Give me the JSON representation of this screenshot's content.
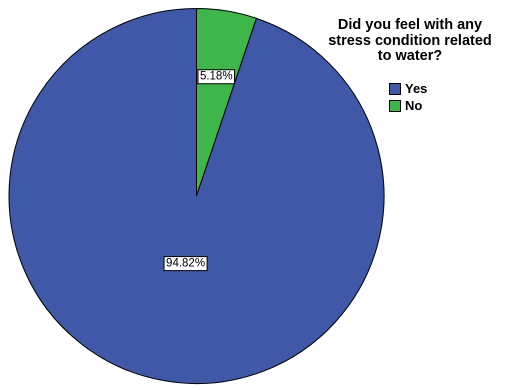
{
  "chart_data": {
    "type": "pie",
    "title": "",
    "legend": {
      "title": "Did you feel with any\nstress condition related\nto water?",
      "placement": "top-right"
    },
    "slices": [
      {
        "label": "Yes",
        "value": 94.82,
        "data_label": "94.82%",
        "color": "#3F58A8"
      },
      {
        "label": "No",
        "value": 5.18,
        "data_label": "5.18%",
        "color": "#3EB64A"
      }
    ]
  }
}
